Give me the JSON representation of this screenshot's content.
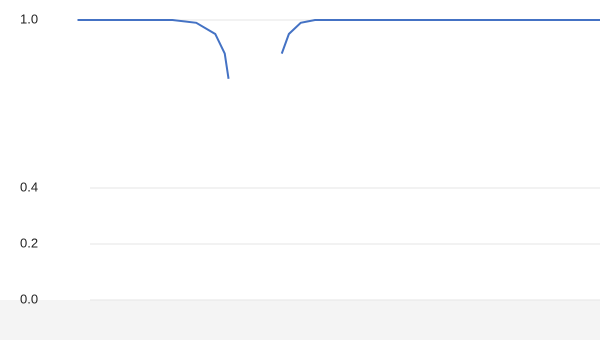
{
  "chart_data": {
    "type": "line",
    "x": [
      1,
      3,
      3.5,
      3.9,
      4.1,
      4.18,
      4.7,
      5.3,
      5.45,
      5.7,
      6,
      8,
      12
    ],
    "series": [
      {
        "color": "#4472c4",
        "values": [
          1.0,
          1.0,
          0.99,
          0.95,
          0.88,
          0.79,
          null,
          0.88,
          0.95,
          0.99,
          1.0,
          1.0,
          1.0
        ]
      }
    ],
    "xlim": [
      0,
      12
    ],
    "ylim": [
      0,
      1
    ],
    "yticks": [
      {
        "value": 0,
        "label": "0.0"
      },
      {
        "value": 0.2,
        "label": "0.2"
      },
      {
        "value": 0.4,
        "label": "0.4"
      },
      {
        "value": 1,
        "label": "1.0"
      }
    ],
    "grid": true
  }
}
